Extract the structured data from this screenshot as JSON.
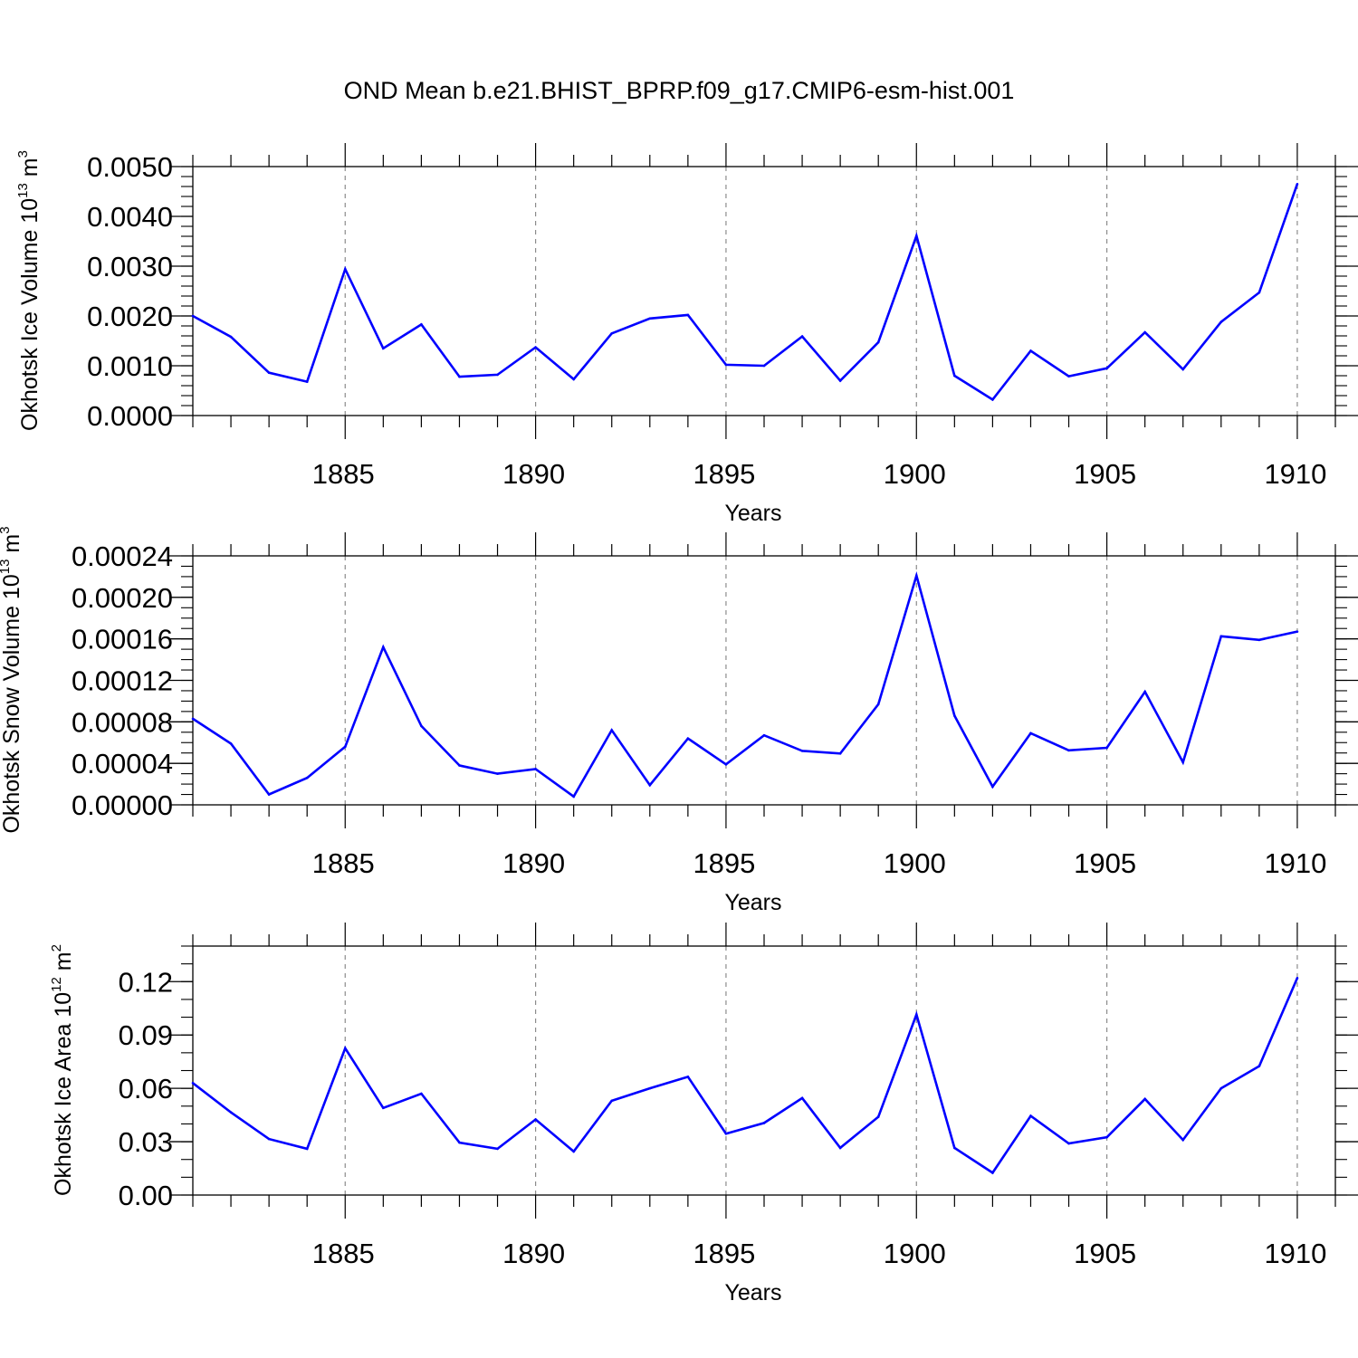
{
  "title": "OND Mean b.e21.BHIST_BPRP.f09_g17.CMIP6-esm-hist.001",
  "colors": {
    "line": "#0000ff",
    "axis": "#000000",
    "grid": "#8c8c8c"
  },
  "chart_data": [
    {
      "type": "line",
      "ylabel": "Okhotsk Ice Volume 10",
      "ylabel_exp": "13",
      "ylabel_unit": "m",
      "ylabel_unit_exp": "3",
      "xlabel": "Years",
      "xlim": [
        1881,
        1911
      ],
      "ylim": [
        0,
        0.005
      ],
      "xticks": [
        1885,
        1890,
        1895,
        1900,
        1905,
        1910
      ],
      "xtick_labels": [
        "1885",
        "1890",
        "1895",
        "1900",
        "1905",
        "1910"
      ],
      "yticks": [
        0,
        0.001,
        0.002,
        0.003,
        0.004,
        0.005
      ],
      "ytick_labels": [
        "0.0000",
        "0.0010",
        "0.0020",
        "0.0030",
        "0.0040",
        "0.0050"
      ],
      "y_minor_step": 0.0002,
      "grid": "vertical dashed at major x ticks",
      "x": [
        1881,
        1882,
        1883,
        1884,
        1885,
        1886,
        1887,
        1888,
        1889,
        1890,
        1891,
        1892,
        1893,
        1894,
        1895,
        1896,
        1897,
        1898,
        1899,
        1900,
        1901,
        1902,
        1903,
        1904,
        1905,
        1906,
        1907,
        1908,
        1909,
        1910
      ],
      "values": [
        0.002,
        0.00158,
        0.00086,
        0.00068,
        0.00294,
        0.00135,
        0.00183,
        0.00078,
        0.00082,
        0.00137,
        0.00073,
        0.00165,
        0.00195,
        0.00202,
        0.00102,
        0.001,
        0.00159,
        0.0007,
        0.00147,
        0.00361,
        0.0008,
        0.00032,
        0.0013,
        0.00079,
        0.00095,
        0.00167,
        0.00093,
        0.00188,
        0.00247,
        0.00465
      ]
    },
    {
      "type": "line",
      "ylabel": "Okhotsk Snow Volume 10",
      "ylabel_exp": "13",
      "ylabel_unit": "m",
      "ylabel_unit_exp": "3",
      "xlabel": "Years",
      "xlim": [
        1881,
        1911
      ],
      "ylim": [
        0,
        0.00024
      ],
      "xticks": [
        1885,
        1890,
        1895,
        1900,
        1905,
        1910
      ],
      "xtick_labels": [
        "1885",
        "1890",
        "1895",
        "1900",
        "1905",
        "1910"
      ],
      "yticks": [
        0,
        4e-05,
        8e-05,
        0.00012,
        0.00016,
        0.0002,
        0.00024
      ],
      "ytick_labels": [
        "0.00000",
        "0.00004",
        "0.00008",
        "0.00012",
        "0.00016",
        "0.00020",
        "0.00024"
      ],
      "y_minor_step": 1e-05,
      "grid": "vertical dashed at major x ticks",
      "x": [
        1881,
        1882,
        1883,
        1884,
        1885,
        1886,
        1887,
        1888,
        1889,
        1890,
        1891,
        1892,
        1893,
        1894,
        1895,
        1896,
        1897,
        1898,
        1899,
        1900,
        1901,
        1902,
        1903,
        1904,
        1905,
        1906,
        1907,
        1908,
        1909,
        1910
      ],
      "values": [
        8.3e-05,
        5.9e-05,
        1e-05,
        2.6e-05,
        5.6e-05,
        0.000152,
        7.6e-05,
        3.8e-05,
        3e-05,
        3.45e-05,
        8e-06,
        7.2e-05,
        1.9e-05,
        6.4e-05,
        3.9e-05,
        6.7e-05,
        5.2e-05,
        4.95e-05,
        9.7e-05,
        0.000221,
        8.6e-05,
        1.75e-05,
        6.9e-05,
        5.25e-05,
        5.5e-05,
        0.000109,
        4.1e-05,
        0.0001625,
        0.000159,
        0.000167
      ]
    },
    {
      "type": "line",
      "ylabel": "Okhotsk Ice Area 10",
      "ylabel_exp": "12",
      "ylabel_unit": "m",
      "ylabel_unit_exp": "2",
      "xlabel": "Years",
      "xlim": [
        1881,
        1911
      ],
      "ylim": [
        0,
        0.14
      ],
      "xticks": [
        1885,
        1890,
        1895,
        1900,
        1905,
        1910
      ],
      "xtick_labels": [
        "1885",
        "1890",
        "1895",
        "1900",
        "1905",
        "1910"
      ],
      "yticks": [
        0,
        0.03,
        0.06,
        0.09,
        0.12
      ],
      "ytick_labels": [
        "0.00",
        "0.03",
        "0.06",
        "0.09",
        "0.12"
      ],
      "y_minor_step": 0.01,
      "grid": "vertical dashed at major x ticks",
      "x": [
        1881,
        1882,
        1883,
        1884,
        1885,
        1886,
        1887,
        1888,
        1889,
        1890,
        1891,
        1892,
        1893,
        1894,
        1895,
        1896,
        1897,
        1898,
        1899,
        1900,
        1901,
        1902,
        1903,
        1904,
        1905,
        1906,
        1907,
        1908,
        1909,
        1910
      ],
      "values": [
        0.063,
        0.0465,
        0.0315,
        0.026,
        0.0825,
        0.049,
        0.057,
        0.0295,
        0.026,
        0.0425,
        0.0245,
        0.053,
        0.06,
        0.0665,
        0.0345,
        0.0405,
        0.0545,
        0.0265,
        0.044,
        0.1015,
        0.0265,
        0.0125,
        0.0445,
        0.029,
        0.0325,
        0.054,
        0.031,
        0.06,
        0.0725,
        0.122
      ]
    }
  ]
}
